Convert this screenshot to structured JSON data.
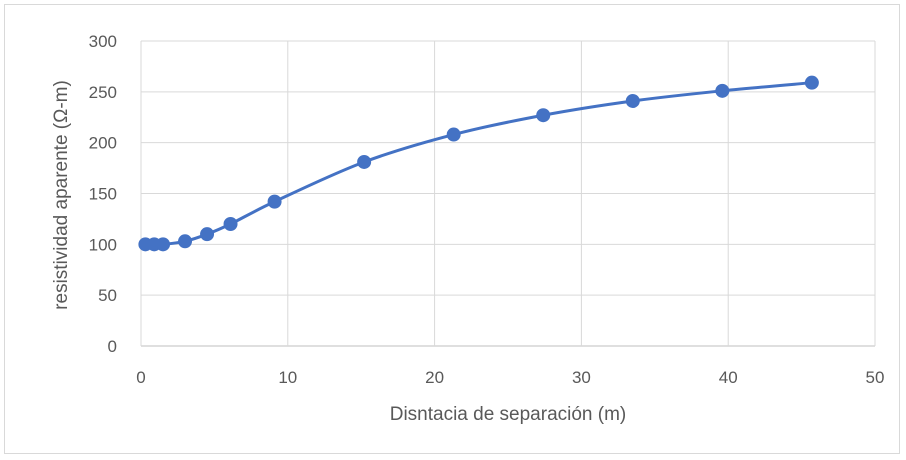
{
  "chart_data": {
    "type": "line",
    "title": "",
    "xlabel": "Disntacia de separación (m)",
    "ylabel": "resistividad aparente (Ω-m)",
    "xlim": [
      0,
      50
    ],
    "ylim": [
      0,
      300
    ],
    "xticks": [
      "0",
      "10",
      "20",
      "30",
      "40",
      "50"
    ],
    "yticks": [
      "0",
      "50",
      "100",
      "150",
      "200",
      "250",
      "300"
    ],
    "grid": true,
    "legend": "none",
    "series_color": "#4472C4",
    "series": [
      {
        "x": [
          0.3,
          0.9,
          1.5,
          3.0,
          4.5,
          6.1,
          9.1,
          15.2,
          21.3,
          27.4,
          33.5,
          39.6,
          45.7
        ],
        "y": [
          100,
          100,
          100,
          103,
          110,
          120,
          142,
          181,
          208,
          227,
          241,
          251,
          259
        ]
      }
    ]
  }
}
